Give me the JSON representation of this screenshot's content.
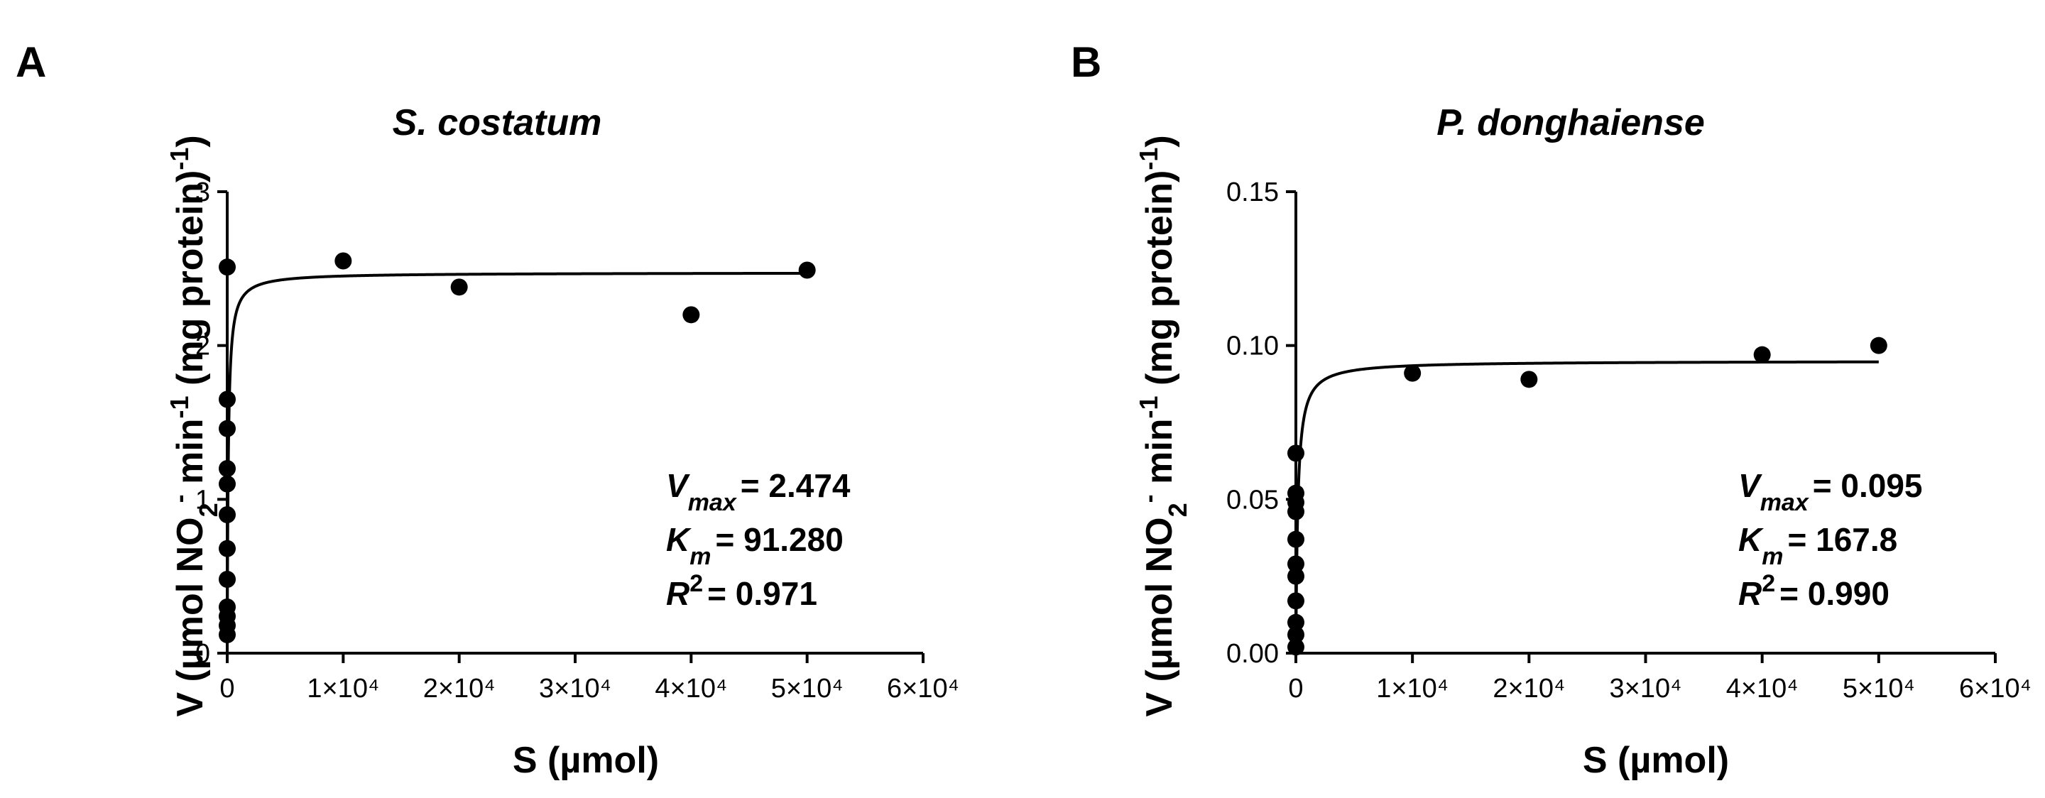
{
  "panels": [
    {
      "letter": "A",
      "title": "S. costatum",
      "ylabel": "V (µmol NO2⁻ min⁻¹ (mg protein)⁻¹)",
      "ylabel_parts": {
        "pre": "V (µmol NO",
        "sub": "2",
        "sup1": "-",
        "mid": " min",
        "sup2": "-1",
        "post": " (mg protein)",
        "sup3": "-1",
        "close": ")"
      },
      "xlabel": "S (µmol)",
      "x_ticks": [
        "0",
        "1×10⁴",
        "2×10⁴",
        "3×10⁴",
        "4×10⁴",
        "5×10⁴",
        "6×10⁴"
      ],
      "y_ticks": [
        "0",
        "1",
        "2",
        "3"
      ],
      "stats": [
        {
          "label": "V",
          "sub": "max",
          "sup": "",
          "value": "= 2.474"
        },
        {
          "label": "K",
          "sub": "m",
          "sup": "",
          "value": "= 91.280"
        },
        {
          "label": "R",
          "sub": "",
          "sup": "2",
          "value": "= 0.971"
        }
      ]
    },
    {
      "letter": "B",
      "title": "P. donghaiense",
      "ylabel": "V (µmol NO2⁻ min⁻¹ (mg protein)⁻¹)",
      "ylabel_parts": {
        "pre": "V (µmol NO",
        "sub": "2",
        "sup1": "-",
        "mid": " min",
        "sup2": "-1",
        "post": " (mg protein)",
        "sup3": "-1",
        "close": ")"
      },
      "xlabel": "S (µmol)",
      "x_ticks": [
        "0",
        "1×10⁴",
        "2×10⁴",
        "3×10⁴",
        "4×10⁴",
        "5×10⁴",
        "6×10⁴"
      ],
      "y_ticks": [
        "0.00",
        "0.05",
        "0.10",
        "0.15"
      ],
      "stats": [
        {
          "label": "V",
          "sub": "max",
          "sup": "",
          "value": "= 0.095"
        },
        {
          "label": "K",
          "sub": "m",
          "sup": "",
          "value": "= 167.8"
        },
        {
          "label": "R",
          "sub": "",
          "sup": "2",
          "value": "= 0.990"
        }
      ]
    }
  ],
  "chart_data": [
    {
      "type": "scatter",
      "title": "S. costatum",
      "xlabel": "S (µmol)",
      "ylabel": "V (µmol NO2⁻ min⁻¹ (mg protein)⁻¹)",
      "xlim": [
        0,
        60000
      ],
      "ylim": [
        0,
        3
      ],
      "x_tick_values": [
        0,
        10000,
        20000,
        30000,
        40000,
        50000,
        60000
      ],
      "y_tick_values": [
        0,
        1,
        2,
        3
      ],
      "points": [
        {
          "x": 0,
          "y": 0.12
        },
        {
          "x": 0,
          "y": 0.18
        },
        {
          "x": 0,
          "y": 0.24
        },
        {
          "x": 0,
          "y": 0.3
        },
        {
          "x": 0,
          "y": 0.48
        },
        {
          "x": 0,
          "y": 0.68
        },
        {
          "x": 0,
          "y": 0.9
        },
        {
          "x": 0,
          "y": 1.1
        },
        {
          "x": 0,
          "y": 1.2
        },
        {
          "x": 0,
          "y": 1.46
        },
        {
          "x": 0,
          "y": 1.65
        },
        {
          "x": 0,
          "y": 2.51
        },
        {
          "x": 10000,
          "y": 2.55
        },
        {
          "x": 20000,
          "y": 2.38
        },
        {
          "x": 40000,
          "y": 2.2
        },
        {
          "x": 50000,
          "y": 2.49
        }
      ],
      "fit": {
        "model": "michaelis-menten",
        "vmax": 2.474,
        "km": 91.28,
        "r2": 0.971,
        "x_range": [
          0,
          50000
        ]
      }
    },
    {
      "type": "scatter",
      "title": "P. donghaiense",
      "xlabel": "S (µmol)",
      "ylabel": "V (µmol NO2⁻ min⁻¹ (mg protein)⁻¹)",
      "xlim": [
        0,
        60000
      ],
      "ylim": [
        0,
        0.15
      ],
      "x_tick_values": [
        0,
        10000,
        20000,
        30000,
        40000,
        50000,
        60000
      ],
      "y_tick_values": [
        0,
        0.05,
        0.1,
        0.15
      ],
      "points": [
        {
          "x": 0,
          "y": 0.002
        },
        {
          "x": 0,
          "y": 0.006
        },
        {
          "x": 0,
          "y": 0.01
        },
        {
          "x": 0,
          "y": 0.017
        },
        {
          "x": 0,
          "y": 0.025
        },
        {
          "x": 0,
          "y": 0.029
        },
        {
          "x": 0,
          "y": 0.037
        },
        {
          "x": 0,
          "y": 0.046
        },
        {
          "x": 0,
          "y": 0.049
        },
        {
          "x": 0,
          "y": 0.052
        },
        {
          "x": 0,
          "y": 0.065
        },
        {
          "x": 10000,
          "y": 0.091
        },
        {
          "x": 20000,
          "y": 0.089
        },
        {
          "x": 40000,
          "y": 0.097
        },
        {
          "x": 50000,
          "y": 0.1
        }
      ],
      "fit": {
        "model": "michaelis-menten",
        "vmax": 0.095,
        "km": 167.8,
        "r2": 0.99,
        "x_range": [
          0,
          50000
        ]
      }
    }
  ]
}
